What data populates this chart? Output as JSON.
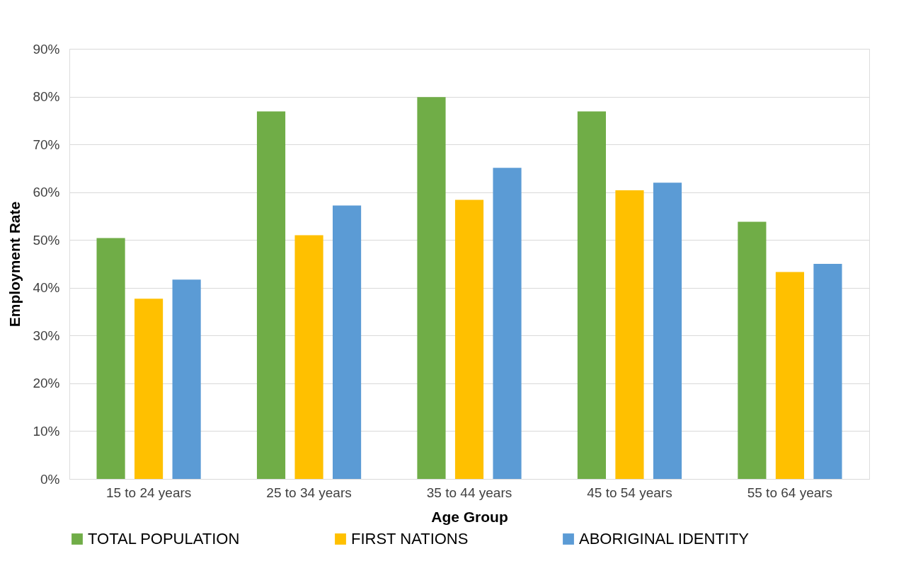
{
  "chart_data": {
    "type": "bar",
    "xlabel": "Age Group",
    "ylabel": "Employment Rate",
    "categories": [
      "15 to 24 years",
      "25 to 34 years",
      "35 to 44 years",
      "45 to 54 years",
      "55 to 64 years"
    ],
    "series": [
      {
        "name": "TOTAL POPULATION",
        "color": "#70ad47",
        "values": [
          50.4,
          76.9,
          79.9,
          76.9,
          53.8
        ]
      },
      {
        "name": "FIRST NATIONS",
        "color": "#ffc000",
        "values": [
          37.7,
          51.0,
          58.4,
          60.4,
          43.3
        ]
      },
      {
        "name": "ABORIGINAL IDENTITY",
        "color": "#5b9bd5",
        "values": [
          41.7,
          57.2,
          65.1,
          62.0,
          45.0
        ]
      }
    ],
    "ylim": [
      0,
      90
    ],
    "yticks": [
      {
        "value": 0,
        "label": "0%"
      },
      {
        "value": 10,
        "label": "10%"
      },
      {
        "value": 20,
        "label": "20%"
      },
      {
        "value": 30,
        "label": "30%"
      },
      {
        "value": 40,
        "label": "40%"
      },
      {
        "value": 50,
        "label": "50%"
      },
      {
        "value": 60,
        "label": "60%"
      },
      {
        "value": 70,
        "label": "70%"
      },
      {
        "value": 80,
        "label": "80%"
      },
      {
        "value": 90,
        "label": "90%"
      }
    ],
    "grid": "y",
    "legend": "bottom"
  }
}
